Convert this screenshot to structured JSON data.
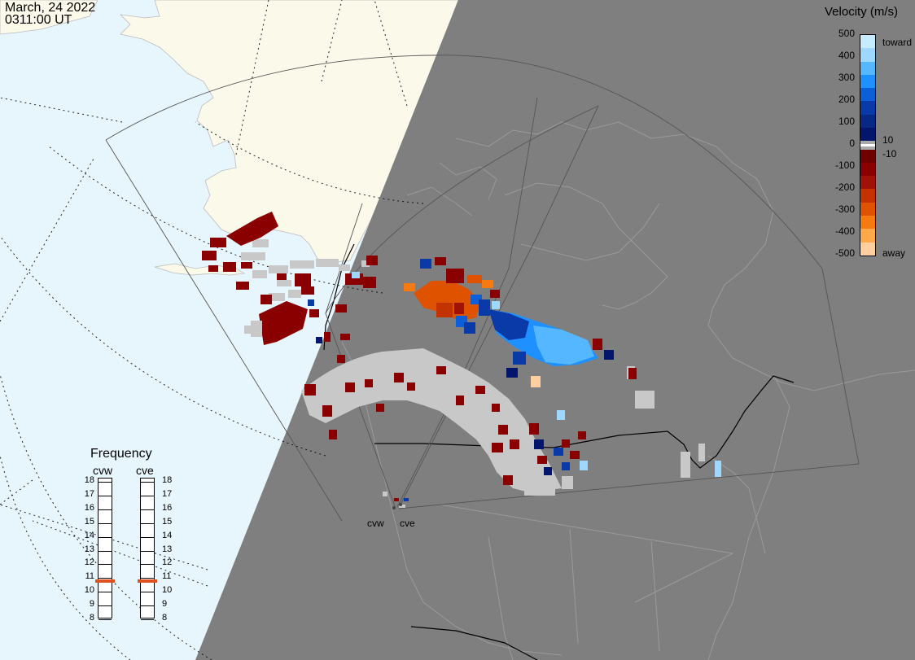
{
  "timestamp": {
    "date": "March, 24 2022",
    "time": "0311:00 UT"
  },
  "velocity_scale": {
    "title": "Velocity (m/s)",
    "ticks": [
      "500",
      "400",
      "300",
      "200",
      "100",
      "10",
      "0",
      "-10",
      "-100",
      "-200",
      "-300",
      "-400",
      "-500"
    ],
    "toward_label": "toward",
    "away_label": "away",
    "colors_toward": [
      "#c8ecff",
      "#9ed7ff",
      "#55b7ff",
      "#1e90ff",
      "#0d5fd8",
      "#0a3aa8",
      "#072883",
      "#04156c"
    ],
    "colors_away": [
      "#6e0000",
      "#8a0000",
      "#a01208",
      "#c23300",
      "#df5200",
      "#f77a10",
      "#ffa94a",
      "#ffcfa0"
    ]
  },
  "frequency_panel": {
    "title": "Frequency",
    "radars": [
      {
        "name": "cvw",
        "frequency_mhz": 10.8
      },
      {
        "name": "cve",
        "frequency_mhz": 10.8
      }
    ],
    "ticks": [
      "18",
      "17",
      "16",
      "15",
      "14",
      "13",
      "12",
      "11",
      "10",
      "9",
      "8"
    ]
  },
  "radar_sites": [
    "cvw",
    "cve"
  ],
  "map_colors": {
    "ocean": "#e7f5fd",
    "land": "#fbf9ea",
    "night": "#7f7f7f",
    "ground_scatter": "#c8c8c8",
    "frequency_marker": "#e0501e"
  }
}
